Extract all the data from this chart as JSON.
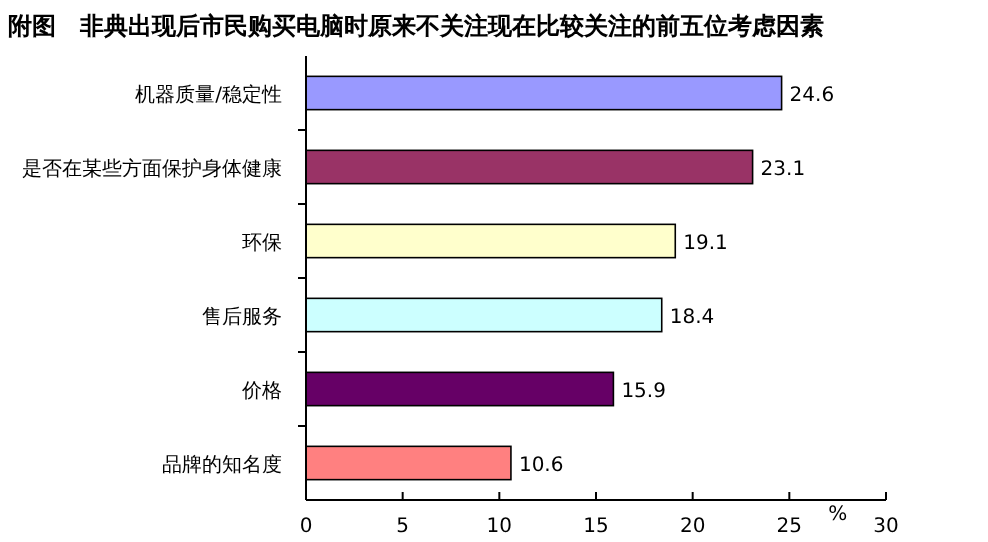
{
  "chart_data": {
    "type": "bar",
    "orientation": "horizontal",
    "title": "附图　非典出现后市民购买电脑时原来不关注现在比较关注的前五位考虑因素",
    "categories": [
      "机器质量/稳定性",
      "是否在某些方面保护身体健康",
      "环保",
      "售后服务",
      "价格",
      "品牌的知名度"
    ],
    "values": [
      24.6,
      23.1,
      19.1,
      18.4,
      15.9,
      10.6
    ],
    "colors": [
      "#9999ff",
      "#993366",
      "#ffffcc",
      "#ccffff",
      "#660066",
      "#ff8080"
    ],
    "xlabel": "%",
    "xlim": [
      0,
      30
    ],
    "xticks": [
      0,
      5,
      10,
      15,
      20,
      25,
      30
    ],
    "data_labels": true
  }
}
